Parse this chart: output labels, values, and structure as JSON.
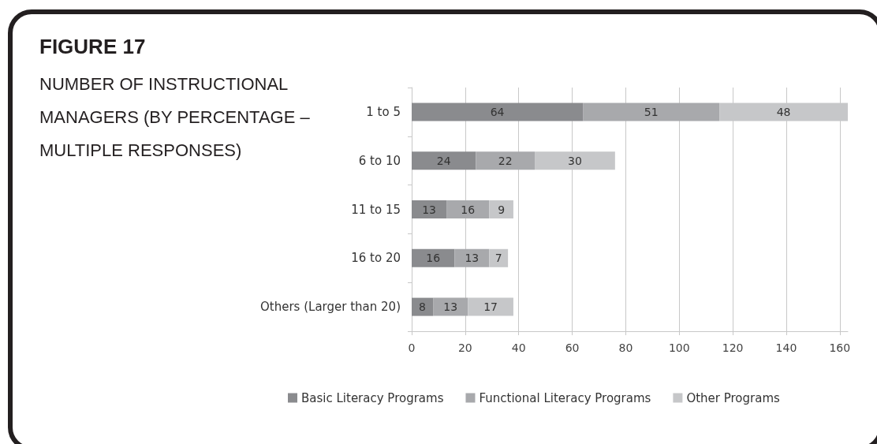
{
  "chart_data": {
    "type": "bar",
    "orientation": "horizontal",
    "stacked": true,
    "title": "FIGURE 17",
    "subtitle": "NUMBER OF INSTRUCTIONAL MANAGERS (BY PERCENTAGE – MULTIPLE RESPONSES)",
    "categories": [
      "1 to 5",
      "6 to 10",
      "11 to 15",
      "16 to 20",
      "Others (Larger than 20)"
    ],
    "series": [
      {
        "name": "Basic Literacy Programs",
        "color": "#8a8b8e",
        "values": [
          64,
          24,
          13,
          16,
          8
        ]
      },
      {
        "name": "Functional Literacy Programs",
        "color": "#a8a9ac",
        "values": [
          51,
          22,
          16,
          13,
          13
        ]
      },
      {
        "name": "Other Programs",
        "color": "#c6c7c9",
        "values": [
          48,
          30,
          9,
          7,
          17
        ]
      }
    ],
    "xlim": [
      0,
      163
    ],
    "xticks": [
      0,
      20,
      40,
      60,
      80,
      100,
      120,
      140,
      160
    ],
    "grid": "x",
    "legend": "bottom",
    "data_labels": true
  }
}
